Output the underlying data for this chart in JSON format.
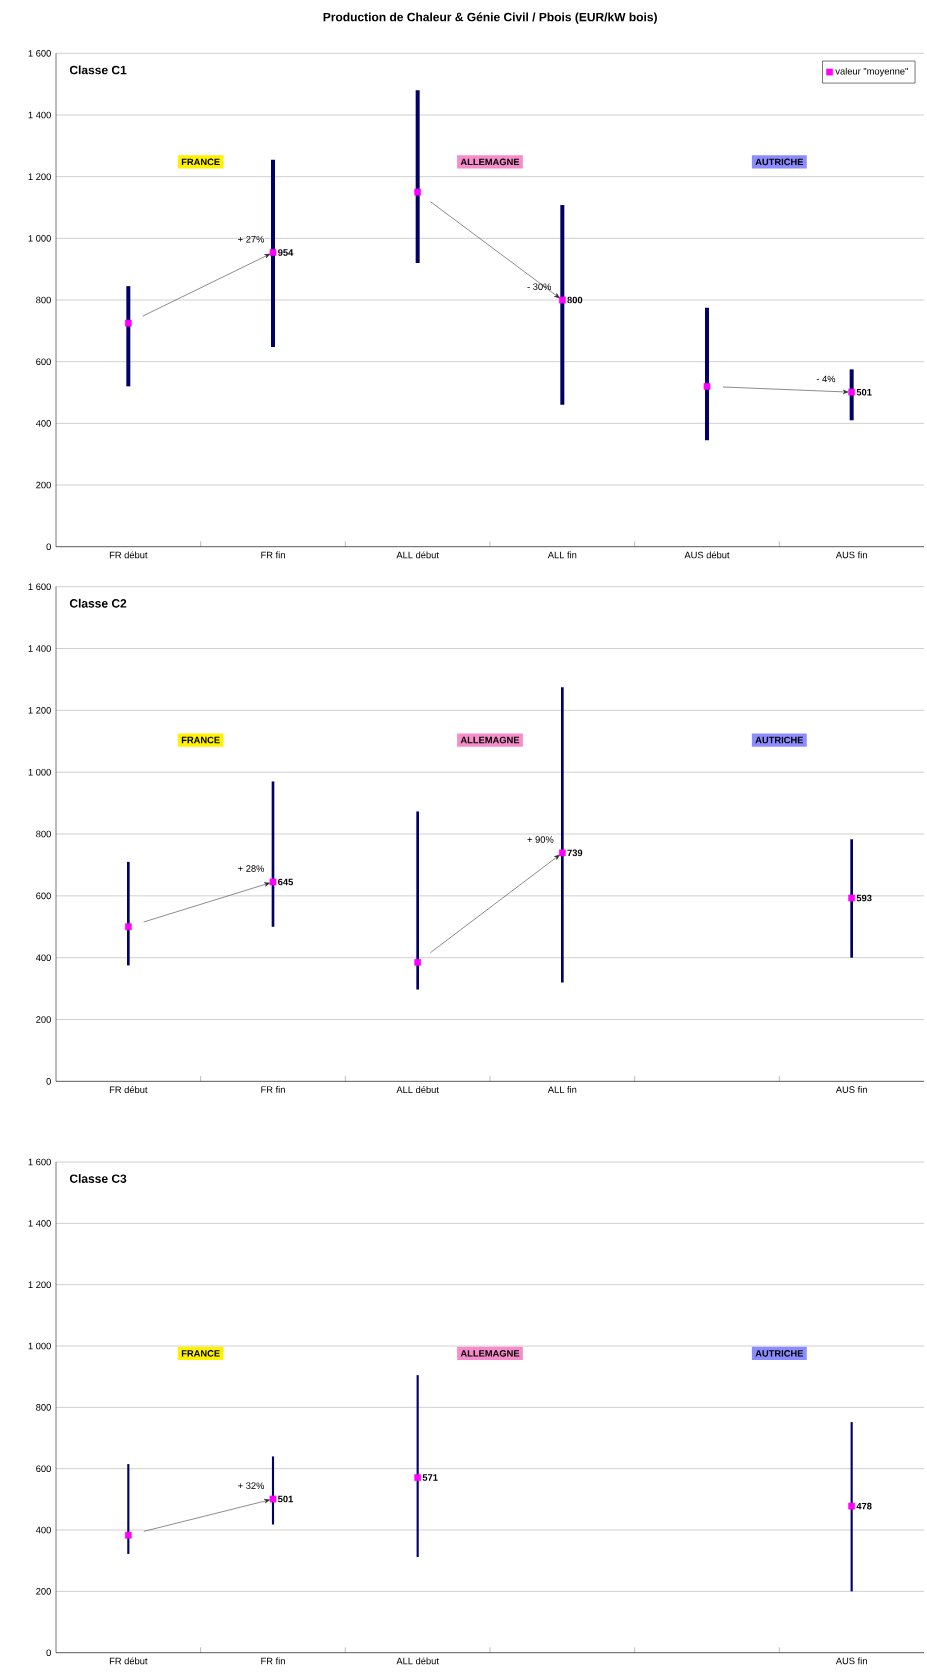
{
  "chart_data": [
    {
      "type": "bar",
      "title": "Production de Chaleur & Génie Civil / Pbois (EUR/kW bois)",
      "subtitle": "Classe C1",
      "categories": [
        "FR début",
        "FR fin",
        "ALL début",
        "ALL fin",
        "AUS début",
        "AUS fin"
      ],
      "series": [
        {
          "color": "#000066",
          "base": [
            520,
            648,
            920,
            460,
            345,
            410
          ],
          "values": [
            325,
            607,
            560,
            648,
            430,
            165
          ]
        },
        {
          "type": "scatter",
          "name": "valeur \"moyenne\"",
          "color": "#ff00ff",
          "values": [
            725,
            954,
            1150,
            800,
            520,
            501
          ],
          "value_labels": [
            null,
            "954",
            null,
            "800",
            null,
            "501"
          ]
        }
      ],
      "ylim": [
        0,
        1600
      ],
      "yticks": [
        0,
        200,
        400,
        600,
        800,
        {
          "value": 1000,
          "label": "1 000"
        },
        {
          "value": 1200,
          "label": "1 200"
        },
        {
          "value": 1400,
          "label": "1 400"
        },
        {
          "value": 1600,
          "label": "1 600"
        }
      ],
      "grid": "y",
      "legend": "top right",
      "marker": "square",
      "annotations": [
        "FRANCE",
        "ALLEMAGNE",
        "AUTRICHE",
        {
          "text": "+ 27%",
          "x": "FR fin",
          "y": 954
        },
        {
          "text": "- 30%",
          "x": "ALL fin",
          "y": 800
        },
        {
          "text": "- 4%",
          "x": "AUS fin",
          "y": 501
        }
      ]
    },
    {
      "type": "bar",
      "subtitle": "Classe C2",
      "categories": [
        "FR début",
        "FR fin",
        "ALL début",
        "ALL fin",
        null,
        "AUS fin"
      ],
      "series": [
        {
          "color": "#000066",
          "base": [
            375,
            500,
            297,
            320,
            null,
            400
          ],
          "values": [
            335,
            470,
            576,
            955,
            null,
            383
          ]
        },
        {
          "type": "scatter",
          "color": "#ff00ff",
          "values": [
            500,
            645,
            385,
            739,
            null,
            593
          ],
          "value_labels": [
            null,
            "645",
            null,
            "739",
            null,
            "593"
          ]
        }
      ],
      "ylim": [
        0,
        1600
      ],
      "yticks": [
        0,
        200,
        400,
        600,
        800,
        {
          "value": 1000,
          "label": "1 000"
        },
        {
          "value": 1200,
          "label": "1 200"
        },
        {
          "value": 1400,
          "label": "1 400"
        },
        {
          "value": 1600,
          "label": "1 600"
        }
      ],
      "grid": "y",
      "marker": "square",
      "annotations": [
        "FRANCE",
        "ALLEMAGNE",
        "AUTRICHE",
        {
          "text": "+ 28%",
          "x": "FR fin",
          "y": 645
        },
        {
          "text": "+ 90%",
          "x": "ALL fin",
          "y": 739
        }
      ]
    },
    {
      "type": "bar",
      "subtitle": "Classe C3",
      "categories": [
        "FR début",
        "FR fin",
        "ALL début",
        null,
        null,
        "AUS fin"
      ],
      "series": [
        {
          "color": "#000066",
          "base": [
            322,
            418,
            312,
            null,
            null,
            200
          ],
          "values": [
            293,
            222,
            593,
            null,
            null,
            552
          ]
        },
        {
          "type": "scatter",
          "color": "#ff00ff",
          "values": [
            383,
            501,
            571,
            null,
            null,
            478
          ],
          "value_labels": [
            null,
            "501",
            "571",
            null,
            null,
            "478"
          ]
        }
      ],
      "ylim": [
        0,
        1600
      ],
      "yticks": [
        0,
        200,
        400,
        600,
        800,
        {
          "value": 1000,
          "label": "1 000"
        },
        {
          "value": 1200,
          "label": "1 200"
        },
        {
          "value": 1400,
          "label": "1 400"
        },
        {
          "value": 1600,
          "label": "1 600"
        }
      ],
      "grid": "y",
      "marker": "square",
      "annotations": [
        "FRANCE",
        "ALLEMAGNE",
        "AUTRICHE",
        {
          "text": "+ 32%",
          "x": "FR fin",
          "y": 501
        }
      ]
    }
  ]
}
